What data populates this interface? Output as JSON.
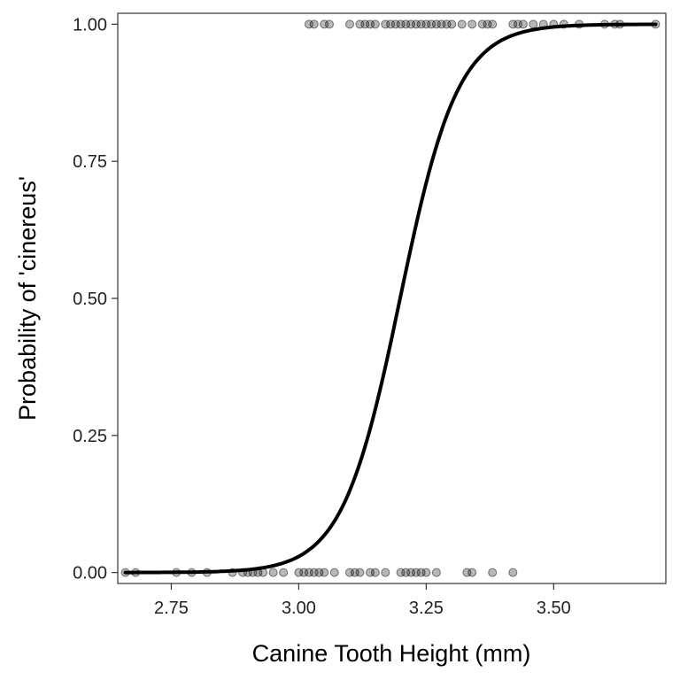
{
  "chart_data": {
    "type": "scatter",
    "xlabel": "Canine Tooth Height (mm)",
    "ylabel": "Probability of 'cinereus'",
    "xlim": [
      2.645,
      3.72
    ],
    "ylim": [
      -0.02,
      1.02
    ],
    "x_ticks": [
      2.75,
      3.0,
      3.25,
      3.5
    ],
    "x_tick_labels": [
      "2.75",
      "3.00",
      "3.25",
      "3.50"
    ],
    "y_ticks": [
      0.0,
      0.25,
      0.5,
      0.75,
      1.0
    ],
    "y_tick_labels": [
      "0.00",
      "0.25",
      "0.50",
      "0.75",
      "1.00"
    ],
    "grid": false,
    "series": [
      {
        "type": "points",
        "y": 1,
        "x": [
          3.02,
          3.03,
          3.05,
          3.06,
          3.1,
          3.12,
          3.13,
          3.14,
          3.15,
          3.17,
          3.18,
          3.19,
          3.2,
          3.21,
          3.22,
          3.23,
          3.24,
          3.25,
          3.26,
          3.27,
          3.28,
          3.29,
          3.3,
          3.32,
          3.34,
          3.36,
          3.37,
          3.38,
          3.42,
          3.43,
          3.44,
          3.46,
          3.48,
          3.5,
          3.52,
          3.55,
          3.6,
          3.62,
          3.63,
          3.7
        ]
      },
      {
        "type": "points",
        "y": 0,
        "x": [
          2.66,
          2.68,
          2.76,
          2.79,
          2.82,
          2.87,
          2.89,
          2.9,
          2.91,
          2.92,
          2.93,
          2.95,
          2.97,
          3.0,
          3.01,
          3.02,
          3.03,
          3.04,
          3.05,
          3.07,
          3.1,
          3.11,
          3.12,
          3.14,
          3.15,
          3.17,
          3.2,
          3.21,
          3.22,
          3.23,
          3.24,
          3.25,
          3.27,
          3.33,
          3.34,
          3.38,
          3.42
        ]
      },
      {
        "type": "logistic-fit",
        "x_range": [
          2.66,
          3.7
        ],
        "intercept": -56.3,
        "slope": 17.6
      }
    ],
    "colors": {
      "points": "#000000",
      "curve": "#000000",
      "axes": "#333333"
    }
  }
}
